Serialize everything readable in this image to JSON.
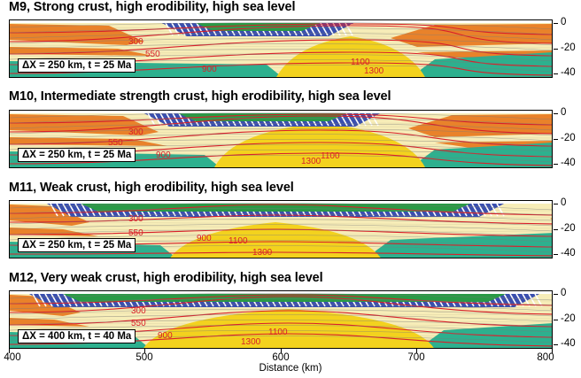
{
  "panels": [
    {
      "title": "M9, Strong crust, high erodibility, high sea level",
      "info": "ΔX = 250 km, t = 25 Ma",
      "isotherms": [
        "300",
        "550",
        "900",
        "1100",
        "1300"
      ]
    },
    {
      "title": "M10, Intermediate strength crust, high erodibility, high sea level",
      "info": "ΔX = 250 km, t = 25 Ma",
      "isotherms": [
        "300",
        "550",
        "900",
        "1300",
        "1100"
      ]
    },
    {
      "title": "M11, Weak crust, high erodibility, high sea level",
      "info": "ΔX = 250 km, t = 25 Ma",
      "isotherms": [
        "300",
        "550",
        "900",
        "1100",
        "1300"
      ]
    },
    {
      "title": "M12, Very weak crust, high erodibility, high sea level",
      "info": "ΔX = 400 km, t = 40 Ma",
      "isotherms": [
        "300",
        "550",
        "900",
        "1100",
        "1300"
      ]
    }
  ],
  "y_axis": {
    "ticks": [
      "0",
      "-20",
      "-40"
    ]
  },
  "x_axis": {
    "ticks": [
      "400",
      "500",
      "600",
      "700",
      "800"
    ],
    "label": "Distance (km)"
  },
  "colors": {
    "upper_crust_orange": "#e9822a",
    "light_crust": "#f7edb8",
    "sediment_green": "#2a9a46",
    "sediment_blue": "#3a4fae",
    "mantle_yellow": "#f3d21e",
    "lithosphere_teal": "#2db08e",
    "isotherm_red": "#d8202a"
  }
}
